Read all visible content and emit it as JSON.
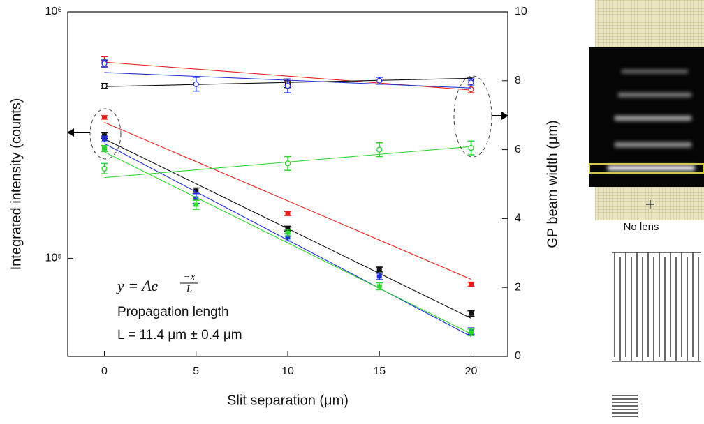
{
  "chart_data": {
    "type": "scatter",
    "xlabel": "Slit separation (μm)",
    "ylabel": "Integrated intensity (counts)",
    "y2label": "GP beam width (μm)",
    "x": [
      0,
      5,
      10,
      15,
      20
    ],
    "xlim": [
      -2,
      22
    ],
    "xticks": [
      0,
      5,
      10,
      15,
      20
    ],
    "ylim": [
      40000,
      1000000
    ],
    "log_y": true,
    "yticks": [
      {
        "value": 100000,
        "label": "10⁵"
      },
      {
        "value": 1000000,
        "label": "10⁶"
      }
    ],
    "y2lim": [
      0,
      10
    ],
    "y2ticks": [
      0,
      2,
      4,
      6,
      8,
      10
    ],
    "fit_x": [
      0,
      20
    ],
    "series": [
      {
        "color": "#e8201c",
        "axis": "y",
        "marker": "filled",
        "values": [
          373000,
          null,
          152000,
          null,
          78500
        ],
        "errors": [
          6000,
          null,
          3000,
          null,
          1500
        ],
        "fit": [
          356000,
          82200
        ]
      },
      {
        "color": "#111111",
        "axis": "y",
        "marker": "filled",
        "values": [
          315000,
          188000,
          132000,
          90100,
          59700
        ],
        "errors": [
          8000,
          5000,
          3000,
          2000,
          1500
        ],
        "fit": [
          305000,
          57100
        ]
      },
      {
        "color": "#1f2fd6",
        "axis": "y",
        "marker": "filled",
        "values": [
          305000,
          175000,
          121600,
          84400,
          50700
        ],
        "errors": [
          8000,
          8000,
          4000,
          2500,
          1500
        ],
        "fit": [
          292000,
          48200
        ]
      },
      {
        "color": "#2fd62f",
        "axis": "y",
        "marker": "filled",
        "values": [
          279000,
          165000,
          127000,
          77000,
          50100
        ],
        "errors": [
          8000,
          7000,
          4000,
          2500,
          1500
        ],
        "fit": [
          270000,
          49400
        ]
      },
      {
        "color": "#e8201c",
        "axis": "y2",
        "marker": "open",
        "values": [
          8.55,
          null,
          7.95,
          null,
          7.75
        ],
        "errors": [
          0.15,
          null,
          0.1,
          null,
          0.1
        ],
        "fit": [
          8.54,
          7.73
        ]
      },
      {
        "color": "#111111",
        "axis": "y2",
        "marker": "open",
        "values": [
          7.85,
          null,
          7.9,
          null,
          8.0
        ],
        "errors": [
          0.07,
          null,
          0.1,
          null,
          0.1
        ],
        "fit": [
          7.83,
          8.07
        ]
      },
      {
        "color": "#1f2fd6",
        "axis": "y2",
        "marker": "open",
        "values": [
          8.5,
          7.9,
          7.85,
          8.0,
          7.95
        ],
        "errors": [
          0.1,
          0.2,
          0.2,
          0.1,
          0.1
        ],
        "fit": [
          8.24,
          7.79
        ]
      },
      {
        "color": "#2fd62f",
        "axis": "y2",
        "marker": "open",
        "values": [
          5.45,
          null,
          5.6,
          6.0,
          6.05
        ],
        "errors": [
          0.15,
          null,
          0.2,
          0.2,
          0.2
        ],
        "fit": [
          5.19,
          6.09
        ]
      }
    ],
    "annotations": {
      "formula": "y = Ae",
      "formula_numerator": "−x",
      "formula_denominator": "L",
      "caption": "Propagation length",
      "result": "L = 11.4 μm ± 0.4 μm"
    }
  },
  "side_panel": {
    "caption": "No lens"
  }
}
